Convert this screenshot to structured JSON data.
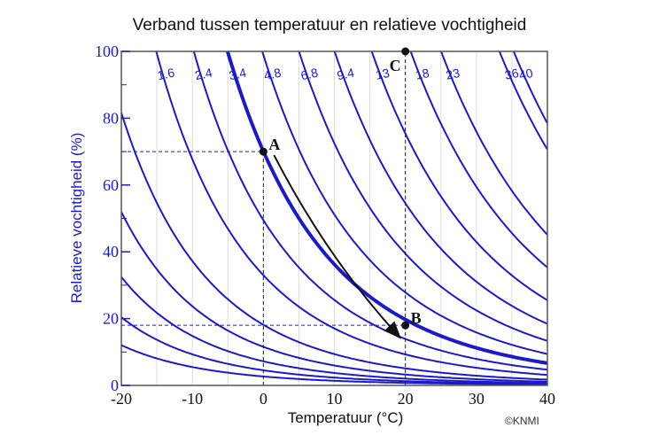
{
  "chart_data": {
    "type": "line",
    "title": "Verband tussen temperatuur en relatieve vochtigheid",
    "xlabel": "Temperatuur (°C)",
    "ylabel": "Relatieve vochtigheid (%)",
    "credit": "©KNMI",
    "xlim": [
      -20,
      40
    ],
    "ylim": [
      0,
      100
    ],
    "xticks": [
      -20,
      -10,
      0,
      10,
      20,
      30,
      40
    ],
    "yticks": [
      0,
      20,
      40,
      60,
      80,
      100
    ],
    "grid": "vertical minor lines every 5 °C",
    "series_description": "Curves of constant absolute humidity (g/m³); RH = absolute humidity / saturation humidity at T",
    "labeled_curves": [
      1.6,
      2.4,
      3.4,
      4.8,
      6.8,
      9.4,
      13,
      18,
      23,
      36,
      40
    ],
    "unlabeled_curves": [
      0.13,
      0.22,
      0.35,
      0.56,
      0.88
    ],
    "highlighted_curve": 3.4,
    "points": [
      {
        "label": "A",
        "T": 0,
        "RH": 70
      },
      {
        "label": "B",
        "T": 20,
        "RH": 18
      },
      {
        "label": "C",
        "T": 20,
        "RH": 100
      }
    ],
    "arrow": {
      "from": "A",
      "to": "B"
    },
    "guides": [
      {
        "type": "h",
        "RH": 70,
        "from_T": -20,
        "to_T": 0
      },
      {
        "type": "v",
        "T": 0,
        "from_RH": 0,
        "to_RH": 70
      },
      {
        "type": "h",
        "RH": 18,
        "from_T": -20,
        "to_T": 20
      },
      {
        "type": "v",
        "T": 20,
        "from_RH": 0,
        "to_RH": 100
      }
    ]
  },
  "colors": {
    "curve": "#1a1acc",
    "axis": "#555555",
    "grid": "#dddddd",
    "point": "#111111"
  }
}
